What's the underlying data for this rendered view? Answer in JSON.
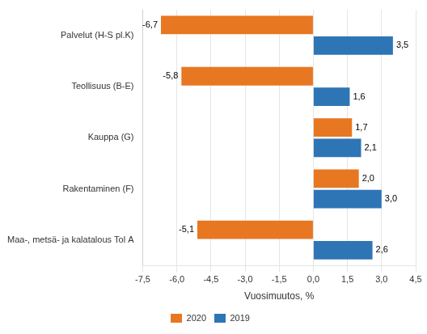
{
  "chart_data": {
    "type": "bar",
    "orientation": "horizontal",
    "categories": [
      "Palvelut (H-S pl.K)",
      "Teollisuus (B-E)",
      "Kauppa (G)",
      "Rakentaminen (F)",
      "Maa-, metsä- ja kalatalous Tol A"
    ],
    "series": [
      {
        "name": "2020",
        "color": "#E87722",
        "values": [
          -6.7,
          -5.8,
          1.7,
          2.0,
          -5.1
        ],
        "value_labels": [
          "-6,7",
          "-5,8",
          "1,7",
          "2,0",
          "-5,1"
        ]
      },
      {
        "name": "2019",
        "color": "#2E75B6",
        "values": [
          3.5,
          1.6,
          2.1,
          3.0,
          2.6
        ],
        "value_labels": [
          "3,5",
          "1,6",
          "2,1",
          "3,0",
          "2,6"
        ]
      }
    ],
    "xlabel": "Vuosimuutos, %",
    "xlim": [
      -7.5,
      4.5
    ],
    "xticks": [
      {
        "value": -7.5,
        "label": "-7,5"
      },
      {
        "value": -6.0,
        "label": "-6,0"
      },
      {
        "value": -4.5,
        "label": "-4,5"
      },
      {
        "value": -3.0,
        "label": "-3,0"
      },
      {
        "value": -1.5,
        "label": "-1,5"
      },
      {
        "value": 0.0,
        "label": "0,0"
      },
      {
        "value": 1.5,
        "label": "1,5"
      },
      {
        "value": 3.0,
        "label": "3,0"
      },
      {
        "value": 4.5,
        "label": "4,5"
      }
    ],
    "grid": true,
    "legend": "bottom",
    "data_labels": true
  }
}
